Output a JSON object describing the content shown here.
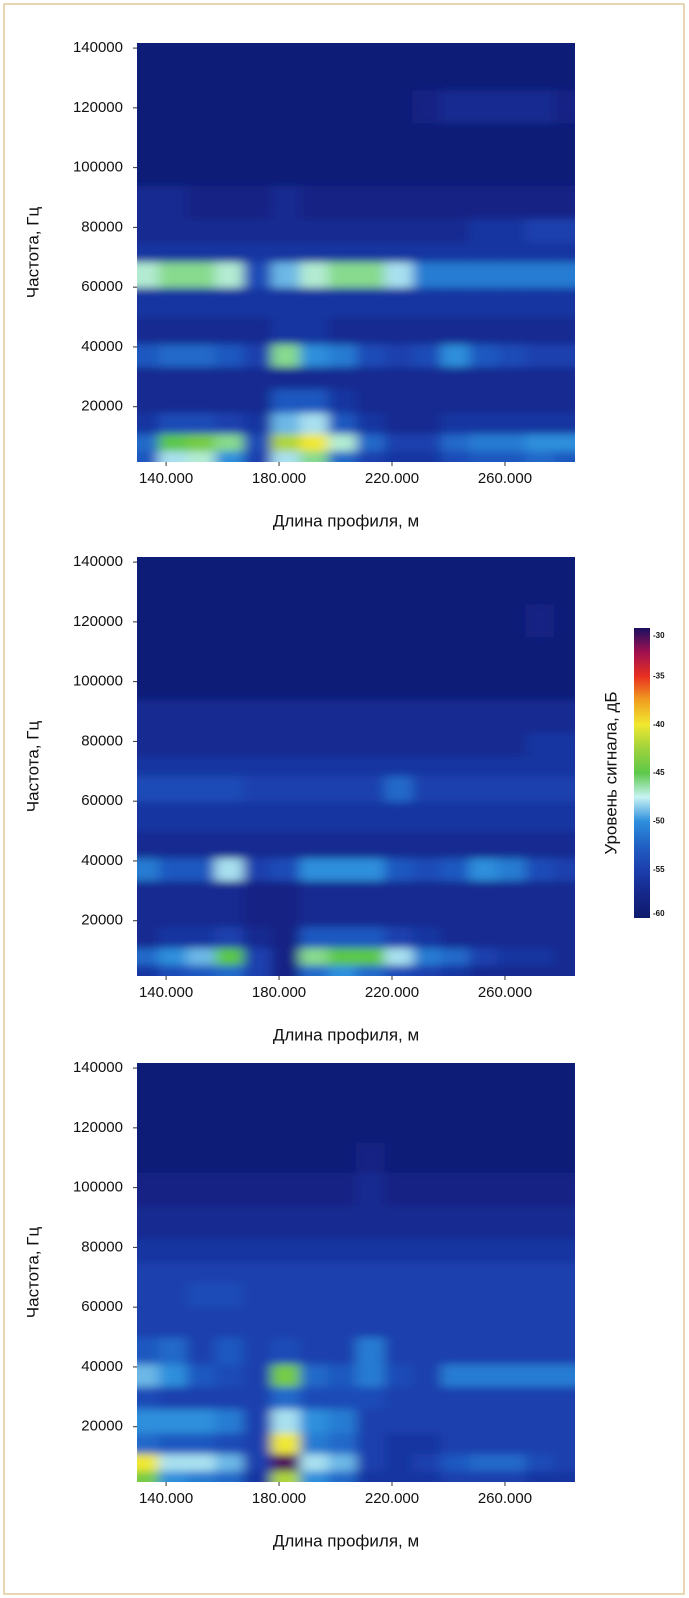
{
  "chart_data": [
    {
      "type": "heatmap",
      "x_label": "Длина профиля, м",
      "y_label": "Частота, Гц",
      "xlim": [
        129700,
        284800
      ],
      "ylim": [
        1500,
        141700
      ],
      "xticks": [
        {
          "value": 140000,
          "label": "140.000"
        },
        {
          "value": 180000,
          "label": "180.000"
        },
        {
          "value": 220000,
          "label": "220.000"
        },
        {
          "value": 260000,
          "label": "260.000"
        }
      ],
      "yticks": [
        20000,
        40000,
        60000,
        80000,
        100000,
        120000,
        140000
      ],
      "x": [
        132500,
        142500,
        152500,
        162500,
        172500,
        182500,
        192500,
        202500,
        212500,
        222500,
        232500,
        242500,
        252500,
        262500,
        272500,
        282500
      ],
      "y": [
        2500,
        8000,
        14000,
        22000,
        30000,
        37000,
        45000,
        55000,
        65000,
        72000,
        78000,
        88000,
        100000,
        110000,
        120000,
        132000
      ],
      "z": [
        [
          -53,
          -48,
          -47,
          -50,
          -55,
          -48,
          -46,
          -52,
          -55,
          -56,
          -56,
          -54,
          -53,
          -53,
          -52,
          -53
        ],
        [
          -52,
          -45,
          -44,
          -46,
          -54,
          -42,
          -40,
          -47,
          -52,
          -55,
          -55,
          -52,
          -51,
          -51,
          -50,
          -50
        ],
        [
          -56,
          -54,
          -54,
          -55,
          -56,
          -49,
          -48,
          -53,
          -56,
          -57,
          -57,
          -56,
          -56,
          -56,
          -56,
          -56
        ],
        [
          -57,
          -57,
          -57,
          -57,
          -57,
          -53,
          -53,
          -56,
          -57,
          -57,
          -57,
          -57,
          -57,
          -57,
          -57,
          -57
        ],
        [
          -57,
          -57,
          -57,
          -57,
          -57,
          -57,
          -57,
          -57,
          -57,
          -57,
          -57,
          -57,
          -57,
          -57,
          -57,
          -57
        ],
        [
          -53,
          -52,
          -52,
          -53,
          -55,
          -46,
          -50,
          -51,
          -54,
          -55,
          -54,
          -50,
          -53,
          -54,
          -55,
          -55
        ],
        [
          -57,
          -57,
          -57,
          -57,
          -57,
          -56,
          -56,
          -57,
          -57,
          -57,
          -57,
          -57,
          -57,
          -57,
          -57,
          -57
        ],
        [
          -56,
          -56,
          -56,
          -56,
          -56,
          -56,
          -56,
          -56,
          -56,
          -56,
          -56,
          -56,
          -56,
          -56,
          -56,
          -56
        ],
        [
          -47,
          -46,
          -46,
          -47,
          -54,
          -49,
          -47,
          -46,
          -46,
          -48,
          -51,
          -51,
          -51,
          -51,
          -51,
          -51
        ],
        [
          -56,
          -56,
          -56,
          -56,
          -56,
          -56,
          -56,
          -56,
          -56,
          -56,
          -56,
          -56,
          -56,
          -56,
          -56,
          -56
        ],
        [
          -57,
          -57,
          -57,
          -57,
          -57,
          -57,
          -57,
          -57,
          -57,
          -57,
          -57,
          -57,
          -56,
          -56,
          -55,
          -55
        ],
        [
          -57,
          -57,
          -58,
          -58,
          -58,
          -57,
          -58,
          -58,
          -58,
          -58,
          -58,
          -58,
          -58,
          -58,
          -58,
          -58
        ],
        [
          -59,
          -59,
          -59,
          -59,
          -59,
          -59,
          -59,
          -59,
          -59,
          -59,
          -59,
          -59,
          -59,
          -59,
          -59,
          -59
        ],
        [
          -59,
          -59,
          -59,
          -59,
          -59,
          -59,
          -59,
          -59,
          -59,
          -59,
          -59,
          -59,
          -59,
          -59,
          -59,
          -59
        ],
        [
          -59,
          -59,
          -59,
          -59,
          -59,
          -59,
          -59,
          -59,
          -59,
          -59,
          -58,
          -57,
          -57,
          -57,
          -57,
          -58
        ],
        [
          -59,
          -59,
          -59,
          -59,
          -59,
          -59,
          -59,
          -59,
          -59,
          -59,
          -59,
          -59,
          -59,
          -59,
          -59,
          -59
        ]
      ]
    },
    {
      "type": "heatmap",
      "x_label": "Длина профиля, м",
      "y_label": "Частота, Гц",
      "xlim": [
        129700,
        284800
      ],
      "ylim": [
        1500,
        141700
      ],
      "xticks": [
        {
          "value": 140000,
          "label": "140.000"
        },
        {
          "value": 180000,
          "label": "180.000"
        },
        {
          "value": 220000,
          "label": "220.000"
        },
        {
          "value": 260000,
          "label": "260.000"
        }
      ],
      "yticks": [
        20000,
        40000,
        60000,
        80000,
        100000,
        120000,
        140000
      ],
      "x": [
        132500,
        142500,
        152500,
        162500,
        172500,
        182500,
        192500,
        202500,
        212500,
        222500,
        232500,
        242500,
        252500,
        262500,
        272500,
        282500
      ],
      "y": [
        2500,
        8000,
        14000,
        22000,
        30000,
        37000,
        45000,
        55000,
        65000,
        72000,
        78000,
        88000,
        100000,
        110000,
        120000,
        132000
      ],
      "z": [
        [
          -56,
          -54,
          -53,
          -52,
          -55,
          -58,
          -52,
          -50,
          -52,
          -54,
          -55,
          -56,
          -57,
          -57,
          -57,
          -57
        ],
        [
          -52,
          -50,
          -49,
          -45,
          -55,
          -58,
          -46,
          -45,
          -45,
          -48,
          -51,
          -52,
          -55,
          -56,
          -56,
          -57
        ],
        [
          -57,
          -56,
          -56,
          -55,
          -57,
          -58,
          -53,
          -53,
          -53,
          -55,
          -56,
          -57,
          -57,
          -57,
          -57,
          -57
        ],
        [
          -57,
          -57,
          -57,
          -57,
          -58,
          -58,
          -57,
          -57,
          -57,
          -57,
          -57,
          -57,
          -57,
          -57,
          -57,
          -57
        ],
        [
          -57,
          -57,
          -57,
          -57,
          -58,
          -58,
          -57,
          -57,
          -57,
          -57,
          -57,
          -57,
          -57,
          -57,
          -57,
          -57
        ],
        [
          -51,
          -53,
          -53,
          -48,
          -55,
          -54,
          -50,
          -50,
          -50,
          -53,
          -54,
          -53,
          -50,
          -51,
          -54,
          -55
        ],
        [
          -57,
          -57,
          -57,
          -57,
          -57,
          -57,
          -57,
          -57,
          -57,
          -57,
          -57,
          -57,
          -57,
          -57,
          -57,
          -57
        ],
        [
          -56,
          -56,
          -56,
          -56,
          -56,
          -56,
          -56,
          -56,
          -56,
          -56,
          -56,
          -56,
          -56,
          -56,
          -56,
          -56
        ],
        [
          -54,
          -54,
          -54,
          -54,
          -55,
          -55,
          -55,
          -55,
          -55,
          -52,
          -55,
          -55,
          -55,
          -55,
          -55,
          -55
        ],
        [
          -56,
          -56,
          -56,
          -56,
          -56,
          -56,
          -56,
          -56,
          -56,
          -56,
          -56,
          -56,
          -56,
          -56,
          -56,
          -56
        ],
        [
          -57,
          -57,
          -57,
          -57,
          -57,
          -57,
          -57,
          -57,
          -57,
          -57,
          -57,
          -57,
          -57,
          -57,
          -56,
          -56
        ],
        [
          -57,
          -57,
          -57,
          -57,
          -57,
          -57,
          -57,
          -57,
          -57,
          -57,
          -57,
          -57,
          -57,
          -57,
          -57,
          -57
        ],
        [
          -59,
          -59,
          -59,
          -59,
          -59,
          -59,
          -59,
          -59,
          -59,
          -59,
          -59,
          -59,
          -59,
          -59,
          -59,
          -59
        ],
        [
          -59,
          -59,
          -59,
          -59,
          -59,
          -59,
          -59,
          -59,
          -59,
          -59,
          -59,
          -59,
          -59,
          -59,
          -59,
          -59
        ],
        [
          -59,
          -59,
          -59,
          -59,
          -59,
          -59,
          -59,
          -59,
          -59,
          -59,
          -59,
          -59,
          -59,
          -59,
          -58,
          -59
        ],
        [
          -59,
          -59,
          -59,
          -59,
          -59,
          -59,
          -59,
          -59,
          -59,
          -59,
          -59,
          -59,
          -59,
          -59,
          -59,
          -59
        ]
      ],
      "colorbar": {
        "label": "Уровень сигнала, дБ",
        "lim": [
          -60,
          -30
        ],
        "ticks": [
          -30,
          -35,
          -40,
          -45,
          -50,
          -55,
          -60
        ],
        "colors": [
          "#0e1a6b",
          "#15278a",
          "#1c3fae",
          "#2060c4",
          "#2e8fdc",
          "#c8f4f4",
          "#5cc84a",
          "#9ed23c",
          "#f0e830",
          "#f0a020",
          "#e83020",
          "#a01050",
          "#1a1060"
        ]
      }
    },
    {
      "type": "heatmap",
      "x_label": "Длина профиля, м",
      "y_label": "Частота, Гц",
      "xlim": [
        129700,
        284800
      ],
      "ylim": [
        1500,
        141700
      ],
      "xticks": [
        {
          "value": 140000,
          "label": "140.000"
        },
        {
          "value": 180000,
          "label": "180.000"
        },
        {
          "value": 220000,
          "label": "220.000"
        },
        {
          "value": 260000,
          "label": "260.000"
        }
      ],
      "yticks": [
        20000,
        40000,
        60000,
        80000,
        100000,
        120000,
        140000
      ],
      "x": [
        132500,
        142500,
        152500,
        162500,
        172500,
        182500,
        192500,
        202500,
        212500,
        222500,
        232500,
        242500,
        252500,
        262500,
        272500,
        282500
      ],
      "y": [
        2500,
        8000,
        14000,
        22000,
        30000,
        37000,
        45000,
        55000,
        65000,
        72000,
        78000,
        88000,
        100000,
        110000,
        120000,
        132000
      ],
      "z": [
        [
          -44,
          -50,
          -51,
          -52,
          -56,
          -42,
          -50,
          -52,
          -56,
          -56,
          -56,
          -55,
          -55,
          -55,
          -56,
          -56
        ],
        [
          -40,
          -48,
          -48,
          -49,
          -55,
          -31,
          -48,
          -49,
          -55,
          -56,
          -55,
          -53,
          -52,
          -52,
          -54,
          -55
        ],
        [
          -52,
          -53,
          -53,
          -54,
          -55,
          -40,
          -51,
          -52,
          -55,
          -56,
          -56,
          -55,
          -55,
          -55,
          -55,
          -55
        ],
        [
          -50,
          -50,
          -50,
          -51,
          -55,
          -48,
          -50,
          -51,
          -55,
          -55,
          -55,
          -55,
          -55,
          -55,
          -55,
          -55
        ],
        [
          -54,
          -55,
          -55,
          -55,
          -55,
          -52,
          -54,
          -54,
          -54,
          -55,
          -55,
          -55,
          -55,
          -55,
          -55,
          -55
        ],
        [
          -49,
          -50,
          -53,
          -54,
          -55,
          -44,
          -52,
          -53,
          -51,
          -54,
          -55,
          -51,
          -51,
          -51,
          -51,
          -51
        ],
        [
          -53,
          -52,
          -55,
          -53,
          -55,
          -54,
          -55,
          -55,
          -51,
          -55,
          -55,
          -55,
          -55,
          -55,
          -55,
          -55
        ],
        [
          -55,
          -55,
          -55,
          -55,
          -55,
          -55,
          -55,
          -55,
          -55,
          -55,
          -55,
          -55,
          -55,
          -55,
          -55,
          -55
        ],
        [
          -55,
          -55,
          -54,
          -54,
          -55,
          -55,
          -55,
          -55,
          -55,
          -55,
          -55,
          -55,
          -55,
          -55,
          -55,
          -55
        ],
        [
          -55,
          -55,
          -55,
          -55,
          -55,
          -55,
          -55,
          -55,
          -55,
          -55,
          -55,
          -55,
          -55,
          -55,
          -55,
          -55
        ],
        [
          -56,
          -56,
          -56,
          -56,
          -56,
          -56,
          -56,
          -56,
          -56,
          -56,
          -56,
          -56,
          -56,
          -56,
          -56,
          -56
        ],
        [
          -57,
          -57,
          -57,
          -57,
          -57,
          -57,
          -57,
          -57,
          -57,
          -57,
          -57,
          -57,
          -57,
          -57,
          -57,
          -57
        ],
        [
          -58,
          -58,
          -58,
          -58,
          -58,
          -58,
          -58,
          -58,
          -57,
          -58,
          -58,
          -58,
          -58,
          -58,
          -58,
          -58
        ],
        [
          -59,
          -59,
          -59,
          -59,
          -59,
          -59,
          -59,
          -59,
          -58,
          -59,
          -59,
          -59,
          -59,
          -59,
          -59,
          -59
        ],
        [
          -59,
          -59,
          -59,
          -59,
          -59,
          -59,
          -59,
          -59,
          -59,
          -59,
          -59,
          -59,
          -59,
          -59,
          -59,
          -59
        ],
        [
          -59,
          -59,
          -59,
          -59,
          -59,
          -59,
          -59,
          -59,
          -59,
          -59,
          -59,
          -59,
          -59,
          -59,
          -59,
          -59
        ]
      ]
    }
  ]
}
